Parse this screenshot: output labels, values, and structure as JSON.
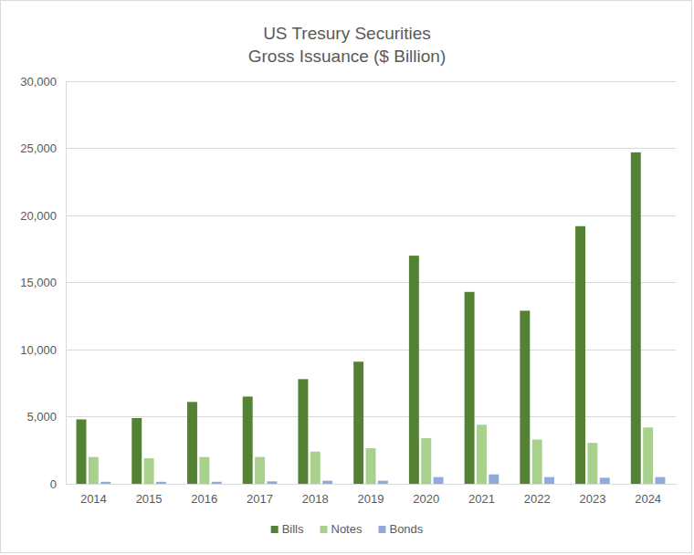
{
  "chart_data": {
    "type": "bar",
    "title": "US Tresury Securities",
    "subtitle": "Gross Issuance ($ Billion)",
    "categories": [
      "2014",
      "2015",
      "2016",
      "2017",
      "2018",
      "2019",
      "2020",
      "2021",
      "2022",
      "2023",
      "2024"
    ],
    "series": [
      {
        "name": "Bills",
        "color": "#548235",
        "values": [
          4800,
          4900,
          6100,
          6500,
          7800,
          9100,
          17000,
          14300,
          12900,
          19200,
          24700
        ]
      },
      {
        "name": "Notes",
        "color": "#a9d18e",
        "values": [
          2000,
          1900,
          2000,
          2000,
          2400,
          2650,
          3400,
          4400,
          3300,
          3050,
          4200
        ]
      },
      {
        "name": "Bonds",
        "color": "#8faadc",
        "values": [
          150,
          150,
          150,
          180,
          230,
          230,
          500,
          700,
          500,
          450,
          500
        ]
      }
    ],
    "ylim": [
      0,
      30000
    ],
    "yticks": [
      0,
      {
        "value": 5000,
        "label": "5,000"
      },
      {
        "value": 10000,
        "label": "10,000"
      },
      {
        "value": 15000,
        "label": "15,000"
      },
      {
        "value": 20000,
        "label": "20,000"
      },
      {
        "value": 25000,
        "label": "25,000"
      },
      {
        "value": 30000,
        "label": "30,000"
      }
    ],
    "grid": true,
    "legend": "bottom"
  }
}
